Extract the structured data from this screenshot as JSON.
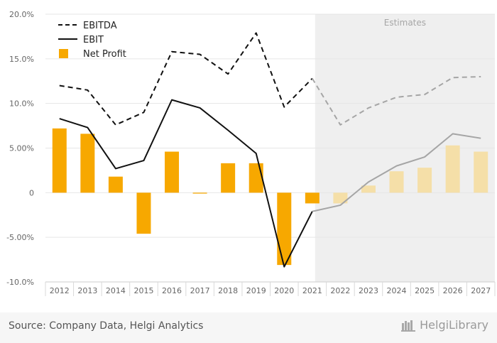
{
  "chart_data": {
    "type": "bar+line",
    "categories": [
      "2012",
      "2013",
      "2014",
      "2015",
      "2016",
      "2017",
      "2018",
      "2019",
      "2020",
      "2021",
      "2022",
      "2023",
      "2024",
      "2025",
      "2026",
      "2027"
    ],
    "estimates_from": "2022",
    "estimates_label": "Estimates",
    "y_ticks": [
      20,
      15,
      10,
      5,
      0,
      -5,
      -10
    ],
    "y_tick_labels": [
      "20.0%",
      "15.0%",
      "10.0%",
      "5.00%",
      "0",
      "-5.00%",
      "-10.0%"
    ],
    "ylim": [
      -10,
      20
    ],
    "series": [
      {
        "name": "EBITDA",
        "kind": "line",
        "style": "dashed",
        "values": [
          12.0,
          11.5,
          7.6,
          9.0,
          15.8,
          15.5,
          13.3,
          17.9,
          9.6,
          12.8,
          7.6,
          9.5,
          10.7,
          11.0,
          12.9,
          13.0
        ]
      },
      {
        "name": "EBIT",
        "kind": "line",
        "style": "solid",
        "values": [
          8.3,
          7.3,
          2.7,
          3.6,
          10.4,
          9.5,
          7.0,
          4.4,
          -8.3,
          -2.1,
          -1.4,
          1.2,
          3.0,
          4.0,
          6.6,
          6.1
        ]
      },
      {
        "name": "Net Profit",
        "kind": "bar",
        "values": [
          7.2,
          6.6,
          1.8,
          -4.6,
          4.6,
          -0.1,
          3.3,
          3.3,
          -8.1,
          -1.2,
          -1.2,
          0.8,
          2.4,
          2.8,
          5.3,
          4.6
        ]
      }
    ],
    "colors": {
      "bar": "#f7a800",
      "bar_estimate": "#f5dfa8",
      "line": "#111111",
      "line_estimate": "#a5a5a5",
      "estimates_bg": "#efefef"
    },
    "legend_position": "top-left",
    "grid": true
  },
  "footer": {
    "source": "Source: Company Data, Helgi Analytics",
    "brand": "HelgiLibrary",
    "brand_icon": "library-icon"
  }
}
